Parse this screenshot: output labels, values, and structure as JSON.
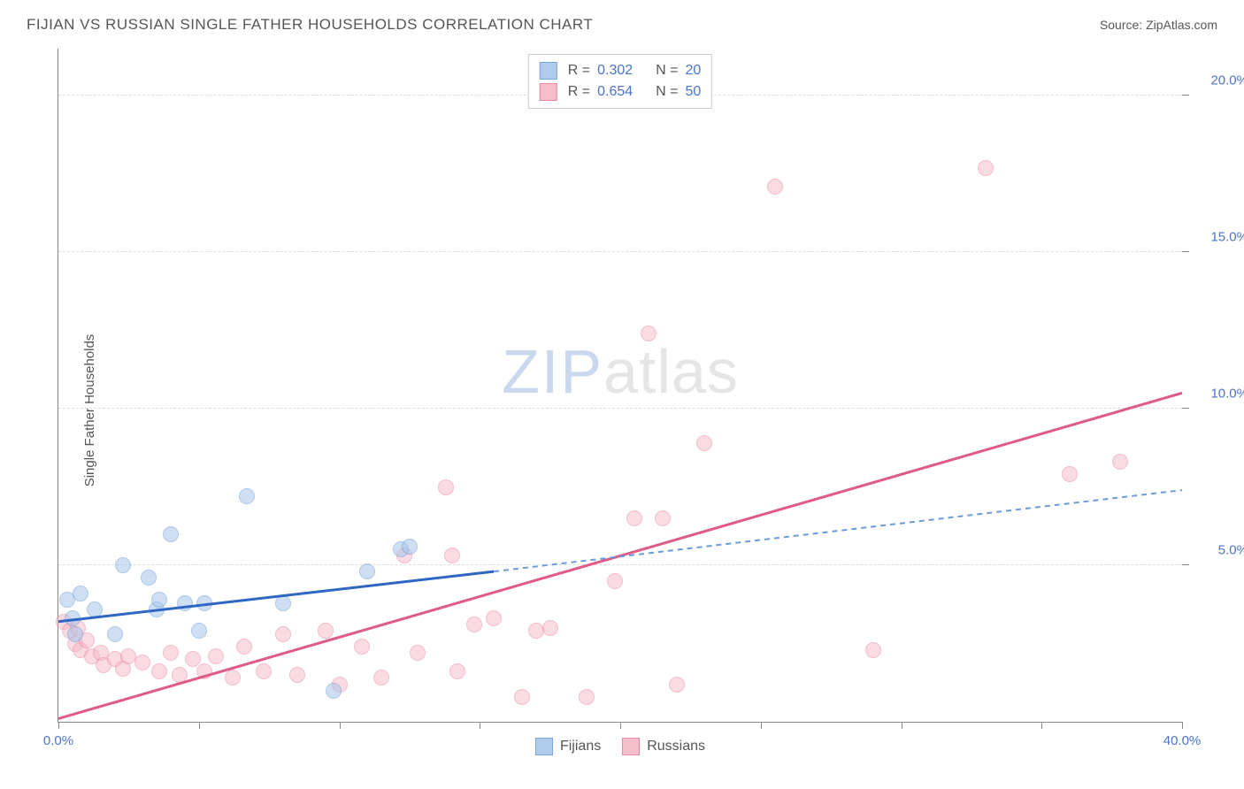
{
  "title": "FIJIAN VS RUSSIAN SINGLE FATHER HOUSEHOLDS CORRELATION CHART",
  "source": "Source: ZipAtlas.com",
  "y_axis_label": "Single Father Households",
  "watermark": {
    "zip": "ZIP",
    "atlas": "atlas"
  },
  "chart": {
    "type": "scatter",
    "xlim": [
      0,
      40
    ],
    "ylim": [
      0,
      21.5
    ],
    "x_ticks": [
      0,
      5,
      10,
      15,
      20,
      25,
      30,
      35,
      40
    ],
    "x_tick_labels": {
      "0": "0.0%",
      "40": "40.0%"
    },
    "y_ticks": [
      5,
      10,
      15,
      20
    ],
    "y_tick_labels": {
      "5": "5.0%",
      "10": "10.0%",
      "15": "15.0%",
      "20": "20.0%"
    },
    "grid_color": "#dddddd",
    "axis_color": "#888888",
    "axis_label_color": "#4a74c9",
    "background_color": "#ffffff"
  },
  "series": {
    "fijians": {
      "label": "Fijians",
      "R": "0.302",
      "N": "20",
      "fill_color": "#a9c6ea",
      "stroke_color": "#6a9bd8",
      "fill_opacity": 0.55,
      "marker_radius": 9,
      "trend": {
        "x1": 0,
        "y1": 3.2,
        "x2": 15.5,
        "y2": 4.8,
        "color": "#2e66c4",
        "width": 3,
        "dash": false
      },
      "trend_ext": {
        "x1": 15.5,
        "y1": 4.8,
        "x2": 40,
        "y2": 7.4,
        "color": "#6a9bd8",
        "width": 2,
        "dash": true
      },
      "points": [
        [
          0.3,
          3.9
        ],
        [
          0.5,
          3.3
        ],
        [
          0.6,
          2.8
        ],
        [
          0.8,
          4.1
        ],
        [
          1.3,
          3.6
        ],
        [
          2.0,
          2.8
        ],
        [
          2.3,
          5.0
        ],
        [
          3.2,
          4.6
        ],
        [
          3.5,
          3.6
        ],
        [
          3.6,
          3.9
        ],
        [
          4.0,
          6.0
        ],
        [
          4.5,
          3.8
        ],
        [
          5.0,
          2.9
        ],
        [
          5.2,
          3.8
        ],
        [
          6.7,
          7.2
        ],
        [
          8.0,
          3.8
        ],
        [
          9.8,
          1.0
        ],
        [
          11.0,
          4.8
        ],
        [
          12.2,
          5.5
        ],
        [
          12.5,
          5.6
        ]
      ]
    },
    "russians": {
      "label": "Russians",
      "R": "0.654",
      "N": "50",
      "fill_color": "#f6b8c6",
      "stroke_color": "#e87b9a",
      "fill_opacity": 0.5,
      "marker_radius": 9,
      "trend": {
        "x1": 0,
        "y1": 0.1,
        "x2": 40,
        "y2": 10.5,
        "color": "#e05a85",
        "width": 3,
        "dash": false
      },
      "points": [
        [
          0.2,
          3.2
        ],
        [
          0.4,
          2.9
        ],
        [
          0.6,
          2.5
        ],
        [
          0.7,
          3.0
        ],
        [
          0.8,
          2.3
        ],
        [
          1.0,
          2.6
        ],
        [
          1.2,
          2.1
        ],
        [
          1.5,
          2.2
        ],
        [
          1.6,
          1.8
        ],
        [
          2.0,
          2.0
        ],
        [
          2.3,
          1.7
        ],
        [
          2.5,
          2.1
        ],
        [
          3.0,
          1.9
        ],
        [
          3.6,
          1.6
        ],
        [
          4.0,
          2.2
        ],
        [
          4.3,
          1.5
        ],
        [
          4.8,
          2.0
        ],
        [
          5.2,
          1.6
        ],
        [
          5.6,
          2.1
        ],
        [
          6.2,
          1.4
        ],
        [
          6.6,
          2.4
        ],
        [
          7.3,
          1.6
        ],
        [
          8.0,
          2.8
        ],
        [
          8.5,
          1.5
        ],
        [
          9.5,
          2.9
        ],
        [
          10.0,
          1.2
        ],
        [
          10.8,
          2.4
        ],
        [
          11.5,
          1.4
        ],
        [
          12.3,
          5.3
        ],
        [
          12.8,
          2.2
        ],
        [
          13.8,
          7.5
        ],
        [
          14.0,
          5.3
        ],
        [
          14.2,
          1.6
        ],
        [
          14.8,
          3.1
        ],
        [
          15.5,
          3.3
        ],
        [
          16.5,
          0.8
        ],
        [
          17.0,
          2.9
        ],
        [
          17.5,
          3.0
        ],
        [
          18.8,
          0.8
        ],
        [
          19.8,
          4.5
        ],
        [
          20.5,
          6.5
        ],
        [
          21.0,
          12.4
        ],
        [
          21.5,
          6.5
        ],
        [
          23.0,
          8.9
        ],
        [
          25.5,
          17.1
        ],
        [
          29.0,
          2.3
        ],
        [
          33.0,
          17.7
        ],
        [
          36.0,
          7.9
        ],
        [
          37.8,
          8.3
        ],
        [
          22.0,
          1.2
        ]
      ]
    }
  },
  "legend_bottom": [
    "Fijians",
    "Russians"
  ]
}
